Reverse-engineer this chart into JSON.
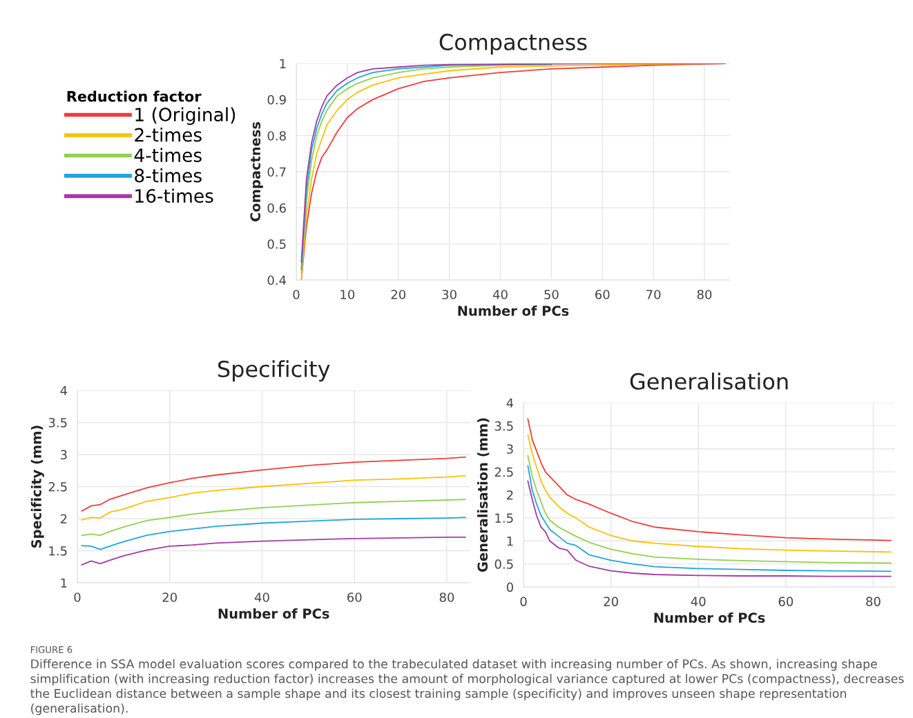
{
  "chart_data": [
    {
      "type": "line",
      "title": "Compactness",
      "xlabel": "Number of PCs",
      "ylabel": "Compactness",
      "legend_title": "Reduction factor",
      "legend": "left",
      "grid": true,
      "x": [
        1,
        2,
        3,
        4,
        5,
        6,
        8,
        10,
        12,
        15,
        20,
        25,
        30,
        40,
        50,
        60,
        70,
        84
      ],
      "xlim": [
        0,
        85
      ],
      "xticks": [
        0,
        10,
        20,
        30,
        40,
        50,
        60,
        70,
        80
      ],
      "ylim": [
        0.4,
        1
      ],
      "yticks": [
        0.4,
        0.5,
        0.6,
        0.7,
        0.8,
        0.9,
        1
      ],
      "series": [
        {
          "name": "1 (Original)",
          "color": "#f03c3c",
          "values": [
            0.4,
            0.55,
            0.64,
            0.7,
            0.74,
            0.76,
            0.81,
            0.85,
            0.875,
            0.9,
            0.93,
            0.95,
            0.96,
            0.975,
            0.985,
            0.99,
            0.995,
            1.0
          ]
        },
        {
          "name": "2-times",
          "color": "#ffc000",
          "values": [
            0.4,
            0.58,
            0.68,
            0.75,
            0.79,
            0.83,
            0.87,
            0.9,
            0.92,
            0.94,
            0.96,
            0.97,
            0.98,
            0.99,
            0.993,
            0.996,
            0.998,
            1.0
          ]
        },
        {
          "name": "4-times",
          "color": "#92d050",
          "values": [
            0.42,
            0.62,
            0.73,
            0.8,
            0.84,
            0.87,
            0.91,
            0.93,
            0.945,
            0.96,
            0.975,
            0.985,
            0.99,
            0.995,
            0.997,
            null,
            null,
            null
          ]
        },
        {
          "name": "8-times",
          "color": "#1ea6e0",
          "values": [
            0.43,
            0.65,
            0.76,
            0.82,
            0.86,
            0.89,
            0.925,
            0.945,
            0.96,
            0.975,
            0.985,
            0.99,
            0.995,
            0.997,
            0.998,
            null,
            null,
            null
          ]
        },
        {
          "name": "16-times",
          "color": "#a33aa3",
          "values": [
            0.45,
            0.68,
            0.78,
            0.84,
            0.88,
            0.91,
            0.94,
            0.96,
            0.975,
            0.985,
            0.99,
            0.995,
            0.997,
            0.998,
            0.999,
            1.0,
            1.0,
            1.0
          ]
        }
      ]
    },
    {
      "type": "line",
      "title": "Specificity",
      "xlabel": "Number of PCs",
      "ylabel": "Specificity (mm)",
      "grid": true,
      "x": [
        1,
        3,
        5,
        7,
        10,
        15,
        20,
        25,
        30,
        40,
        50,
        60,
        70,
        80,
        84
      ],
      "xlim": [
        0,
        85
      ],
      "xticks": [
        0,
        20,
        40,
        60,
        80
      ],
      "ylim": [
        1,
        4
      ],
      "yticks": [
        1,
        1.5,
        2,
        2.5,
        3,
        3.5,
        4
      ],
      "series": [
        {
          "color": "#f03c3c",
          "values": [
            2.12,
            2.2,
            2.22,
            2.3,
            2.37,
            2.48,
            2.56,
            2.63,
            2.68,
            2.76,
            2.83,
            2.88,
            2.91,
            2.94,
            2.96
          ]
        },
        {
          "color": "#ffc000",
          "values": [
            1.98,
            2.02,
            2.01,
            2.1,
            2.15,
            2.27,
            2.33,
            2.4,
            2.44,
            2.5,
            2.55,
            2.6,
            2.62,
            2.65,
            2.67
          ]
        },
        {
          "color": "#92d050",
          "values": [
            1.74,
            1.76,
            1.74,
            1.8,
            1.87,
            1.97,
            2.02,
            2.07,
            2.11,
            2.17,
            2.21,
            2.25,
            2.27,
            2.29,
            2.3
          ]
        },
        {
          "color": "#1ea6e0",
          "values": [
            1.58,
            1.57,
            1.52,
            1.57,
            1.64,
            1.74,
            1.8,
            1.84,
            1.88,
            1.93,
            1.96,
            1.99,
            2.0,
            2.01,
            2.02
          ]
        },
        {
          "color": "#a33aa3",
          "values": [
            1.28,
            1.34,
            1.3,
            1.35,
            1.42,
            1.51,
            1.57,
            1.59,
            1.62,
            1.65,
            1.67,
            1.69,
            1.7,
            1.71,
            1.71
          ]
        }
      ]
    },
    {
      "type": "line",
      "title": "Generalisation",
      "xlabel": "Number of PCs",
      "ylabel": "Generalisation (mm)",
      "grid": true,
      "x": [
        1,
        2,
        3,
        4,
        5,
        6,
        8,
        10,
        12,
        15,
        20,
        25,
        30,
        40,
        50,
        60,
        70,
        84
      ],
      "xlim": [
        0,
        85
      ],
      "xticks": [
        0,
        20,
        40,
        60,
        80
      ],
      "ylim": [
        0,
        4
      ],
      "yticks": [
        0,
        0.5,
        1,
        1.5,
        2,
        2.5,
        3,
        3.5,
        4
      ],
      "annotations": [
        "FIGURE 6",
        "Difference in SSA model evaluation scores compared to the trabeculated dataset with increasing number of PCs. As shown, increasing shape simplification (with increasing reduction factor) increases the amount of morphological variance captured at lower PCs (compactness), decreases the Euclidean distance between a sample shape and its closest training sample (specificity) and improves unseen shape representation (generalisation)."
      ],
      "series": [
        {
          "color": "#f03c3c",
          "values": [
            3.65,
            3.2,
            2.95,
            2.7,
            2.5,
            2.4,
            2.2,
            2.0,
            1.9,
            1.8,
            1.6,
            1.42,
            1.3,
            1.2,
            1.13,
            1.07,
            1.04,
            1.01
          ]
        },
        {
          "color": "#ffc000",
          "values": [
            3.3,
            2.9,
            2.6,
            2.3,
            2.1,
            1.95,
            1.75,
            1.6,
            1.5,
            1.3,
            1.12,
            1.0,
            0.95,
            0.88,
            0.83,
            0.8,
            0.78,
            0.76
          ]
        },
        {
          "color": "#92d050",
          "values": [
            2.85,
            2.4,
            2.1,
            1.85,
            1.6,
            1.45,
            1.3,
            1.2,
            1.1,
            0.97,
            0.82,
            0.72,
            0.65,
            0.6,
            0.57,
            0.55,
            0.53,
            0.52
          ]
        },
        {
          "color": "#1ea6e0",
          "values": [
            2.63,
            2.1,
            1.8,
            1.55,
            1.4,
            1.25,
            1.1,
            0.95,
            0.9,
            0.7,
            0.58,
            0.5,
            0.44,
            0.4,
            0.38,
            0.36,
            0.35,
            0.34
          ]
        },
        {
          "color": "#a33aa3",
          "values": [
            2.3,
            1.9,
            1.55,
            1.3,
            1.2,
            1.0,
            0.85,
            0.8,
            0.58,
            0.45,
            0.35,
            0.3,
            0.27,
            0.25,
            0.24,
            0.24,
            0.23,
            0.23
          ]
        }
      ]
    }
  ]
}
